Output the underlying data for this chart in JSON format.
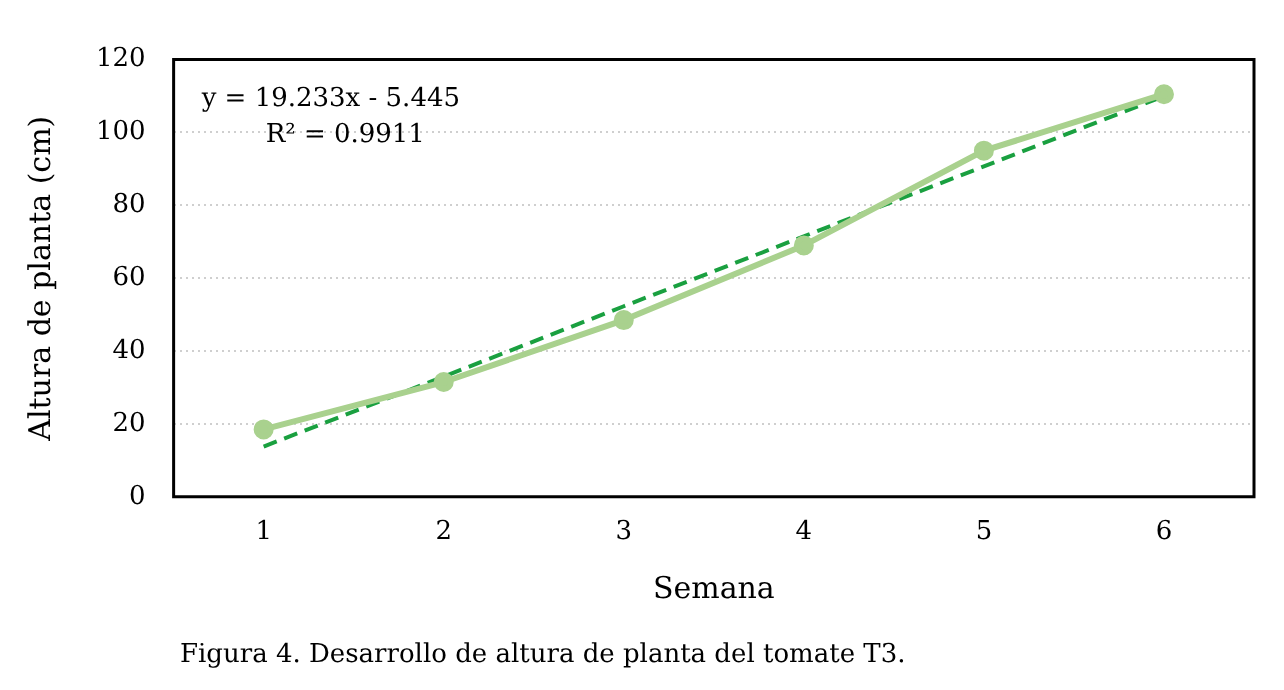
{
  "chart_data": {
    "type": "line",
    "xlabel": "Semana",
    "ylabel": "Altura de planta (cm)",
    "categories": [
      "1",
      "2",
      "3",
      "4",
      "5",
      "6"
    ],
    "series": [
      {
        "color": "#a9d18e",
        "values": [
          18.5,
          31.5,
          48.5,
          69,
          95,
          110.5
        ],
        "marker": "circle"
      },
      {
        "color": "#1aa040",
        "values": [
          13.8,
          33.0,
          52.3,
          71.5,
          90.7,
          110.0
        ],
        "line_style": "dashed",
        "marker": "none"
      }
    ],
    "ylim": [
      0,
      120
    ],
    "yticks": [
      0,
      20,
      40,
      60,
      80,
      100,
      120
    ],
    "grid": "y",
    "legend": false,
    "annotations": [
      "y = 19.233x - 5.445",
      "R² = 0.9911",
      "Figura 4. Desarrollo de altura de planta del tomate T3."
    ]
  }
}
